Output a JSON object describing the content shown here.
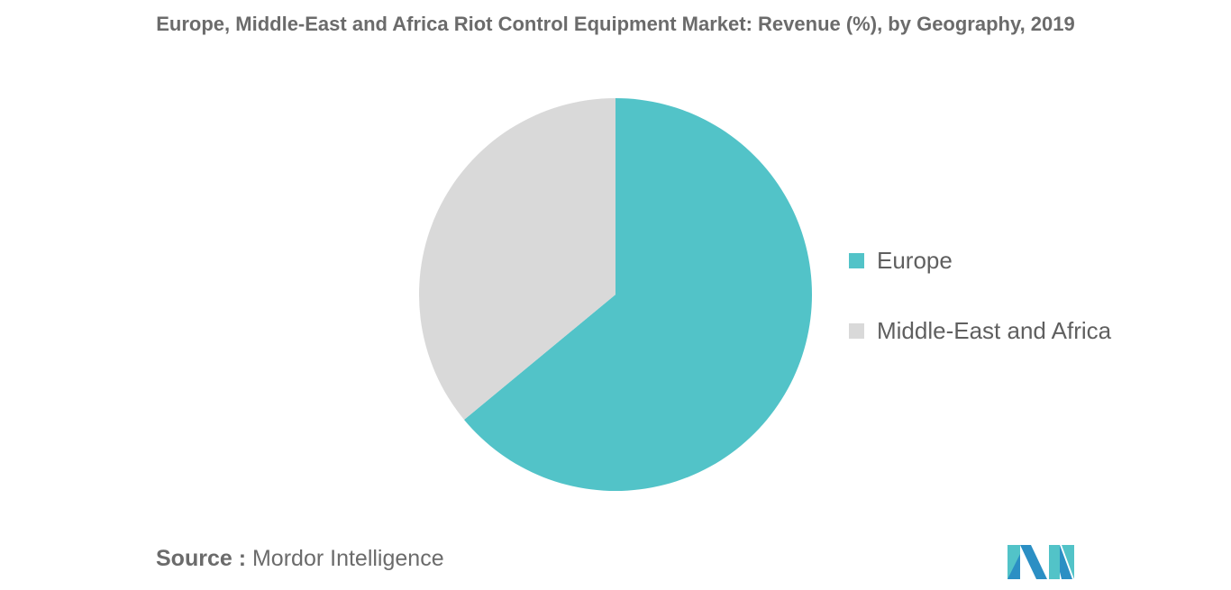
{
  "title": "Europe, Middle-East and Africa Riot Control Equipment Market: Revenue (%), by Geography, 2019",
  "chart_data": {
    "type": "pie",
    "title": "Europe, Middle-East and Africa Riot Control Equipment Market: Revenue (%), by Geography, 2019",
    "slices": [
      {
        "label": "Europe",
        "value": 64,
        "color": "#52c3c8"
      },
      {
        "label": "Middle-East and Africa",
        "value": 36,
        "color": "#d9d9d9"
      }
    ],
    "legend_position": "right",
    "start_angle": "12 o'clock, clockwise"
  },
  "source": {
    "label": "Source :",
    "text": "Mordor Intelligence"
  },
  "logo": {
    "name": "mordor-intelligence-logo",
    "colors": [
      "#52c3c8",
      "#2b8fc4"
    ]
  }
}
